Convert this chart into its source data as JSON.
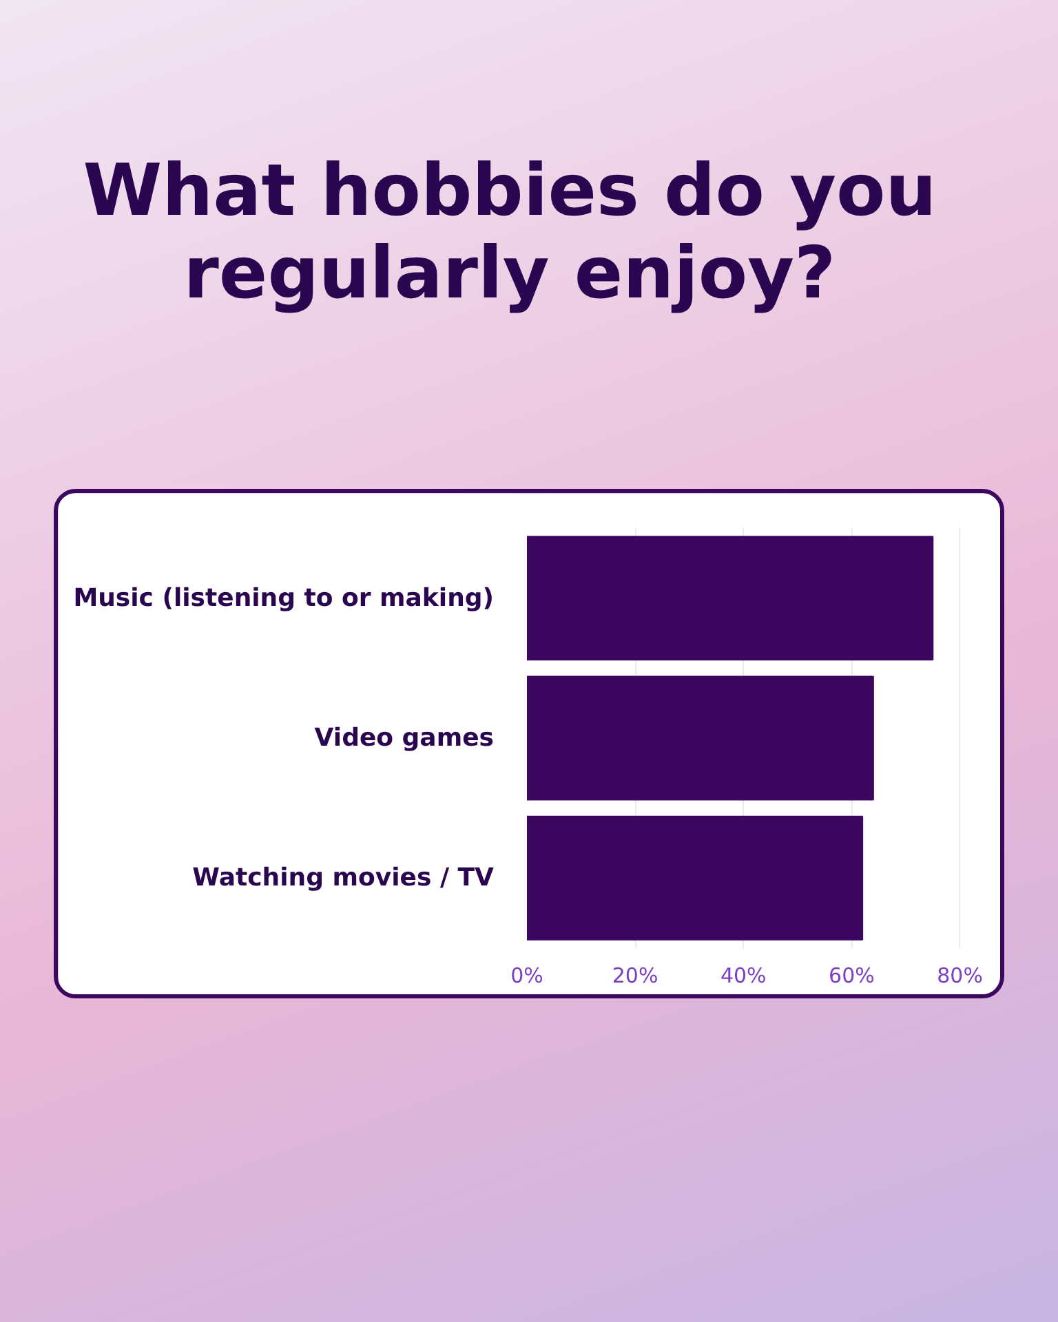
{
  "chart_data": {
    "type": "bar",
    "title": "What hobbies do you regularly enjoy?",
    "orientation": "horizontal",
    "categories": [
      "Music (listening to or making)",
      "Video games",
      "Watching movies / TV"
    ],
    "values": [
      75,
      64,
      62
    ],
    "color": "#3b075f",
    "xlim": [
      0,
      80
    ],
    "xticks": [
      {
        "value": 0,
        "label": "0%"
      },
      {
        "value": 20,
        "label": "20%"
      },
      {
        "value": 40,
        "label": "40%"
      },
      {
        "value": 60,
        "label": "60%"
      },
      {
        "value": 80,
        "label": "80%"
      }
    ],
    "grid": "x"
  }
}
